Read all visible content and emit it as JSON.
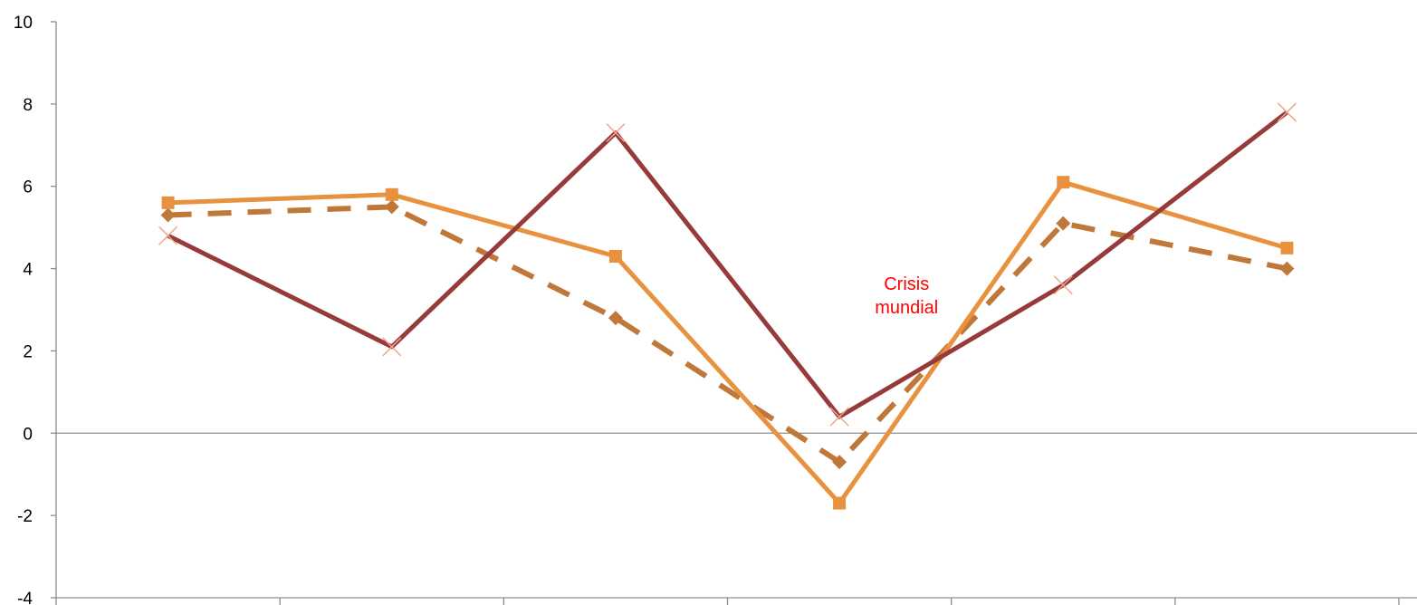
{
  "chart_data": {
    "type": "line",
    "x": [
      1,
      2,
      3,
      4,
      5,
      6
    ],
    "ylim": [
      -4,
      10
    ],
    "yticks": [
      "-4",
      "-2",
      "0",
      "2",
      "4",
      "6",
      "8",
      "10"
    ],
    "xlabels": [],
    "grid": false,
    "series": [
      {
        "values": [
          5.6,
          5.8,
          4.3,
          -1.7,
          6.1,
          4.5
        ],
        "color": "#E8923F",
        "style": "solid",
        "marker": "square"
      },
      {
        "values": [
          5.3,
          5.5,
          2.8,
          -0.7,
          5.1,
          4.0
        ],
        "color": "#C0783A",
        "style": "dashed",
        "marker": "diamond"
      },
      {
        "values": [
          4.8,
          2.1,
          7.3,
          0.4,
          3.6,
          7.8
        ],
        "color": "#963A3A",
        "style": "solid",
        "marker": "x"
      }
    ],
    "annotations": [
      {
        "lines": [
          "Crisis",
          "mundial"
        ],
        "x": 4.3,
        "y": 3.2,
        "color": "#FF0000"
      }
    ]
  }
}
